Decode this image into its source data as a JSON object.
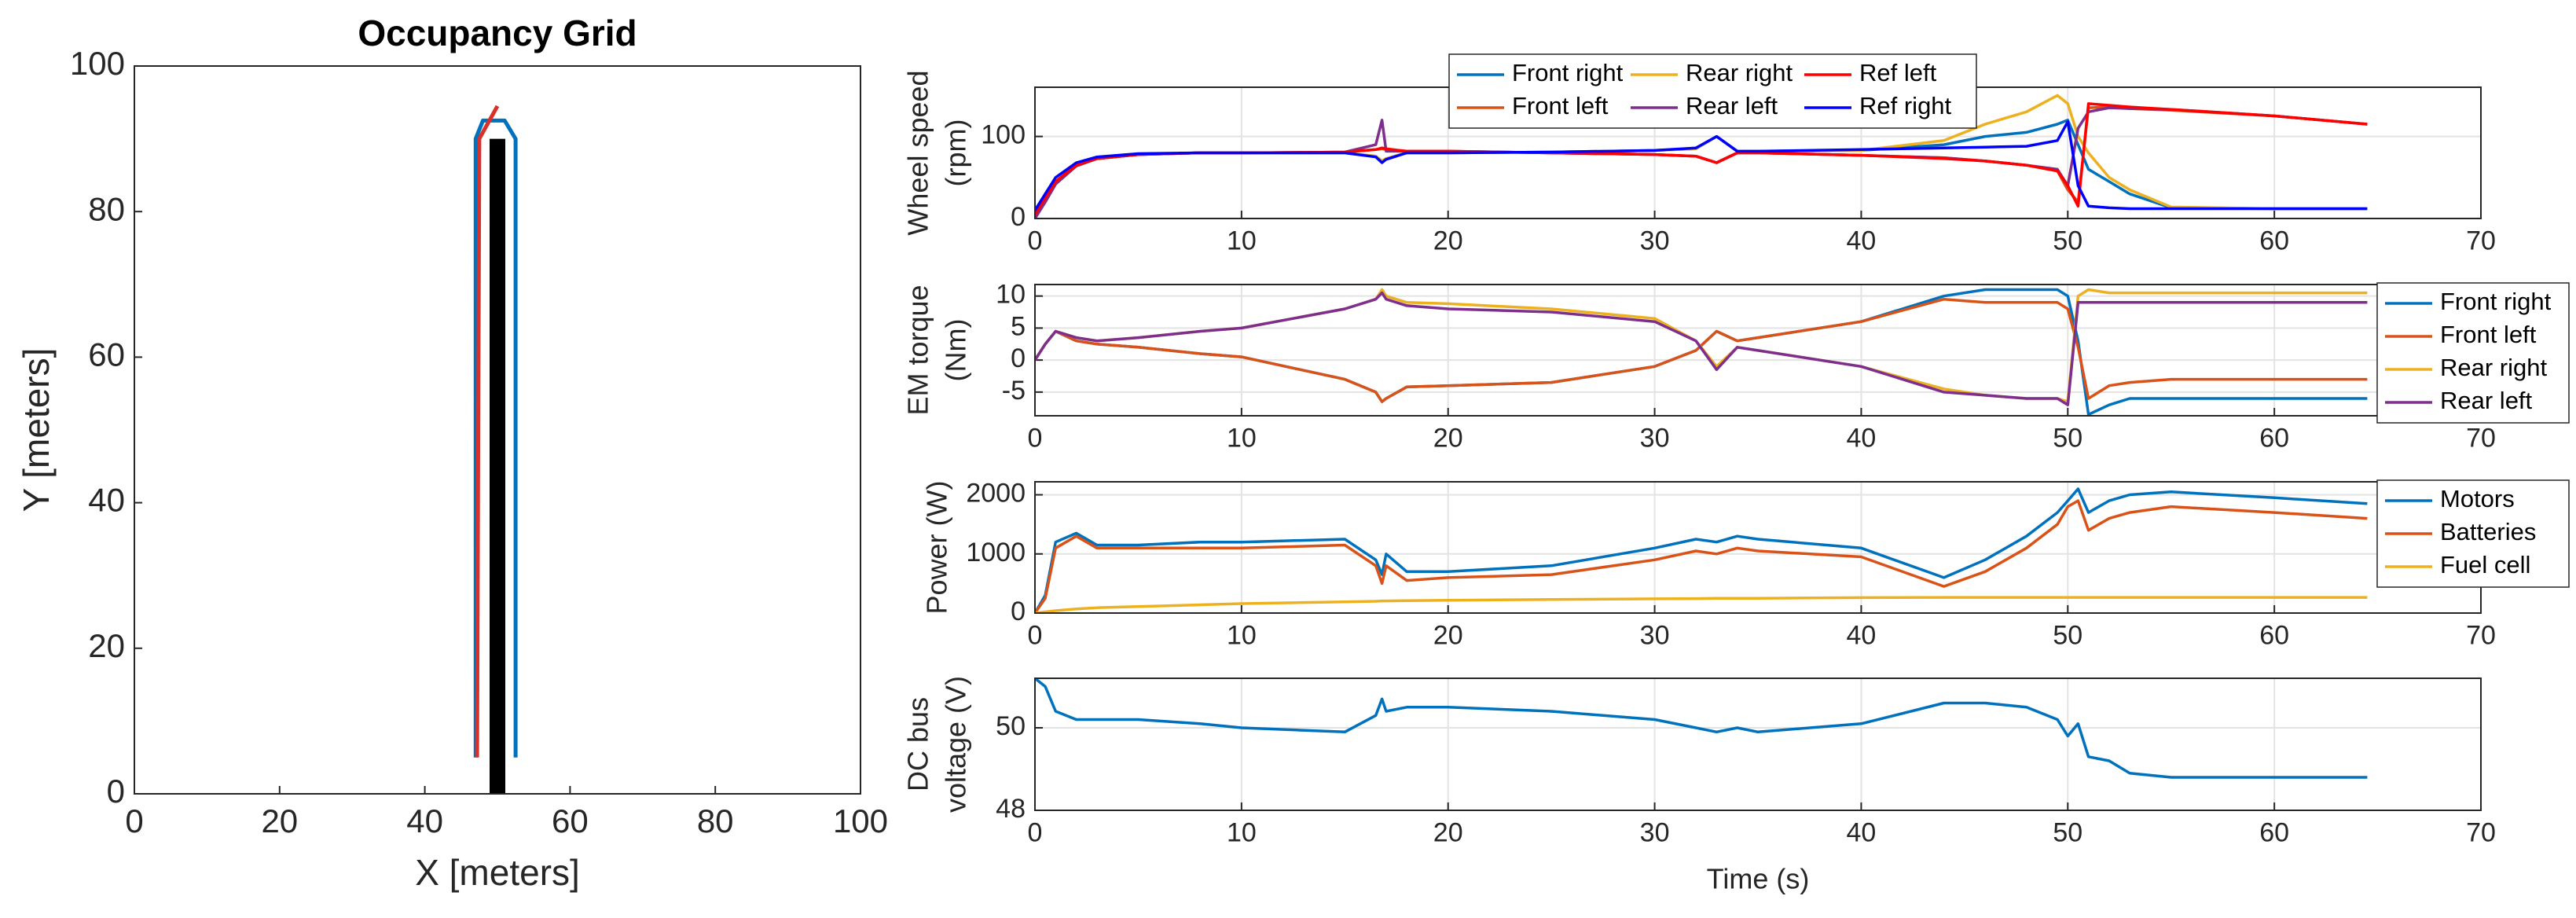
{
  "chart_data": [
    {
      "type": "line",
      "title": "Occupancy Grid",
      "xlabel": "X [meters]",
      "ylabel": "Y [meters]",
      "xlim": [
        0,
        100
      ],
      "ylim": [
        0,
        100
      ],
      "xticks": [
        0,
        20,
        40,
        60,
        80,
        100
      ],
      "yticks": [
        0,
        20,
        40,
        60,
        80,
        100
      ],
      "grid": false,
      "series": [
        {
          "color": "#0072BD",
          "x": [
            52.5,
            52.5,
            51,
            48,
            47,
            47
          ],
          "values": [
            5,
            90,
            92.5,
            92.5,
            90,
            5
          ]
        },
        {
          "color": "#D9302B",
          "x": [
            47.2,
            47.5,
            50
          ],
          "values": [
            5,
            90,
            94.5
          ]
        },
        {
          "color": "#000000",
          "x": [
            50,
            50
          ],
          "values": [
            0,
            90
          ]
        }
      ]
    },
    {
      "type": "line",
      "ylabel": [
        "Wheel speed",
        "(rpm)"
      ],
      "xlim": [
        0,
        70
      ],
      "ylim": [
        0,
        160
      ],
      "xticks": [
        0,
        10,
        20,
        30,
        40,
        50,
        60,
        70
      ],
      "yticks": [
        0,
        100
      ],
      "grid": true,
      "legend": "north",
      "x": [
        0,
        0.5,
        1,
        2,
        3,
        5,
        8,
        10,
        15,
        16.5,
        16.8,
        17,
        18,
        20,
        25,
        30,
        32,
        33,
        34,
        35,
        40,
        44,
        46,
        48,
        49.5,
        50,
        50.5,
        51,
        52,
        53,
        55,
        60,
        64.5
      ],
      "series": [
        {
          "name": "Front right",
          "color": "#0072BD",
          "values": [
            5,
            22,
            45,
            65,
            73,
            78,
            80,
            80,
            80,
            76,
            70,
            73,
            80,
            80,
            81,
            83,
            85,
            100,
            82,
            82,
            83,
            90,
            100,
            105,
            115,
            120,
            90,
            60,
            45,
            30,
            13,
            12,
            12
          ]
        },
        {
          "name": "Front left",
          "color": "#D95319",
          "values": [
            5,
            22,
            45,
            65,
            73,
            78,
            80,
            80,
            81,
            84,
            85,
            84,
            82,
            82,
            80,
            78,
            76,
            68,
            80,
            80,
            77,
            74,
            70,
            65,
            58,
            35,
            20,
            135,
            136,
            134,
            132,
            125,
            115
          ]
        },
        {
          "name": "Rear right",
          "color": "#EDB120",
          "values": [
            5,
            20,
            42,
            64,
            73,
            78,
            80,
            80,
            80,
            76,
            70,
            73,
            80,
            80,
            81,
            83,
            85,
            100,
            82,
            82,
            83,
            95,
            115,
            130,
            150,
            140,
            100,
            80,
            50,
            35,
            14,
            12,
            12
          ]
        },
        {
          "name": "Rear left",
          "color": "#7E2F8E",
          "values": [
            0,
            20,
            42,
            64,
            73,
            78,
            80,
            80,
            81,
            90,
            120,
            82,
            82,
            82,
            80,
            78,
            76,
            68,
            80,
            80,
            77,
            74,
            70,
            65,
            60,
            40,
            110,
            130,
            135,
            134,
            133,
            125,
            115
          ]
        },
        {
          "name": "Ref left",
          "color": "#FF0000",
          "values": [
            5,
            25,
            45,
            65,
            73,
            78,
            80,
            80,
            81,
            84,
            86,
            85,
            82,
            82,
            80,
            78,
            76,
            68,
            80,
            80,
            77,
            73,
            70,
            65,
            58,
            40,
            15,
            140,
            138,
            136,
            133,
            125,
            115
          ]
        },
        {
          "name": "Ref right",
          "color": "#0000FF",
          "values": [
            10,
            30,
            50,
            68,
            75,
            79,
            80,
            80,
            80,
            75,
            68,
            72,
            80,
            80,
            81,
            83,
            86,
            100,
            82,
            82,
            84,
            86,
            87,
            88,
            95,
            118,
            40,
            15,
            13,
            12,
            12,
            12,
            12
          ]
        }
      ]
    },
    {
      "type": "line",
      "ylabel": [
        "EM torque",
        "(Nm)"
      ],
      "xlim": [
        0,
        70
      ],
      "ylim": [
        -8.7,
        11.8
      ],
      "xticks": [
        0,
        10,
        20,
        30,
        40,
        50,
        60,
        70
      ],
      "yticks": [
        -5,
        0,
        5,
        10
      ],
      "grid": true,
      "legend": "eastoutside",
      "x": [
        0,
        0.5,
        1,
        2,
        3,
        5,
        8,
        10,
        15,
        16.5,
        16.8,
        17,
        18,
        20,
        25,
        30,
        32,
        33,
        34,
        35,
        40,
        44,
        46,
        48,
        49.5,
        50,
        50.5,
        51,
        52,
        53,
        55,
        60,
        64.5
      ],
      "series": [
        {
          "name": "Front right",
          "color": "#0072BD",
          "values": [
            0,
            2.5,
            4.5,
            3,
            2.5,
            2,
            1,
            0.5,
            -3,
            -5,
            -6.5,
            -6,
            -4.2,
            -4,
            -3.5,
            -1,
            1.5,
            4.5,
            3,
            3.5,
            6,
            10,
            11,
            11,
            11,
            10,
            3,
            -8.5,
            -7,
            -6,
            -6,
            -6,
            -6
          ]
        },
        {
          "name": "Front left",
          "color": "#D95319",
          "values": [
            0,
            2.5,
            4.5,
            3,
            2.5,
            2,
            1,
            0.5,
            -3,
            -5,
            -6.5,
            -6,
            -4.2,
            -4,
            -3.5,
            -1,
            1.5,
            4.5,
            3,
            3.5,
            6,
            9.5,
            9,
            9,
            9,
            8,
            2,
            -6,
            -4,
            -3.5,
            -3,
            -3,
            -3
          ]
        },
        {
          "name": "Rear right",
          "color": "#EDB120",
          "values": [
            0,
            2.5,
            4.5,
            3.5,
            3,
            3.5,
            4.5,
            5,
            8,
            9.5,
            11,
            10,
            9,
            8.8,
            8,
            6.5,
            3,
            -1,
            2,
            1.5,
            -1,
            -4.5,
            -5.5,
            -6,
            -6,
            -6.5,
            10,
            11,
            10.5,
            10.5,
            10.5,
            10.5,
            10.5
          ]
        },
        {
          "name": "Rear left",
          "color": "#7E2F8E",
          "values": [
            0,
            2.5,
            4.5,
            3.5,
            3,
            3.5,
            4.5,
            5,
            8,
            9.5,
            10.5,
            9.5,
            8.5,
            8,
            7.5,
            6,
            3,
            -1.5,
            2,
            1.5,
            -1,
            -5,
            -5.5,
            -6,
            -6,
            -7,
            9,
            9,
            9,
            9,
            9,
            9,
            9
          ]
        }
      ]
    },
    {
      "type": "line",
      "ylabel": "Power (W)",
      "xlim": [
        0,
        70
      ],
      "ylim": [
        0,
        2220
      ],
      "xticks": [
        0,
        10,
        20,
        30,
        40,
        50,
        60,
        70
      ],
      "yticks": [
        0,
        1000,
        2000
      ],
      "grid": true,
      "legend": "eastoutside",
      "x": [
        0,
        0.5,
        1,
        2,
        3,
        5,
        8,
        10,
        15,
        16.5,
        16.8,
        17,
        18,
        20,
        25,
        30,
        32,
        33,
        34,
        35,
        40,
        44,
        46,
        48,
        49.5,
        50,
        50.5,
        51,
        52,
        53,
        55,
        60,
        64.5
      ],
      "series": [
        {
          "name": "Motors",
          "color": "#0072BD",
          "values": [
            0,
            300,
            1200,
            1350,
            1150,
            1150,
            1200,
            1200,
            1250,
            900,
            650,
            1000,
            700,
            700,
            800,
            1100,
            1250,
            1200,
            1300,
            1250,
            1100,
            600,
            900,
            1300,
            1700,
            1900,
            2100,
            1700,
            1900,
            2000,
            2050,
            1950,
            1850
          ]
        },
        {
          "name": "Batteries",
          "color": "#D95319",
          "values": [
            0,
            250,
            1100,
            1300,
            1100,
            1100,
            1100,
            1100,
            1150,
            800,
            500,
            800,
            550,
            600,
            650,
            900,
            1050,
            1000,
            1100,
            1050,
            950,
            450,
            700,
            1100,
            1500,
            1800,
            1900,
            1400,
            1600,
            1700,
            1800,
            1700,
            1600
          ]
        },
        {
          "name": "Fuel cell",
          "color": "#EDB120",
          "values": [
            0,
            20,
            40,
            70,
            90,
            110,
            140,
            160,
            190,
            200,
            205,
            205,
            210,
            215,
            230,
            240,
            245,
            250,
            250,
            250,
            260,
            265,
            265,
            265,
            265,
            265,
            265,
            265,
            265,
            265,
            265,
            265,
            265
          ]
        }
      ]
    },
    {
      "type": "line",
      "ylabel": [
        "DC bus",
        "voltage (V)"
      ],
      "xlabel": "Time (s)",
      "xlim": [
        0,
        70
      ],
      "ylim": [
        48,
        51.2
      ],
      "xticks": [
        0,
        10,
        20,
        30,
        40,
        50,
        60,
        70
      ],
      "yticks": [
        48,
        50
      ],
      "grid": true,
      "x": [
        0,
        0.5,
        1,
        2,
        3,
        5,
        8,
        10,
        15,
        16.5,
        16.8,
        17,
        18,
        20,
        25,
        30,
        32,
        33,
        34,
        35,
        40,
        44,
        46,
        48,
        49.5,
        50,
        50.5,
        51,
        52,
        53,
        55,
        60,
        64.5
      ],
      "series": [
        {
          "color": "#0072BD",
          "values": [
            51.2,
            51,
            50.4,
            50.2,
            50.2,
            50.2,
            50.1,
            50,
            49.9,
            50.3,
            50.7,
            50.4,
            50.5,
            50.5,
            50.4,
            50.2,
            50.0,
            49.9,
            50.0,
            49.9,
            50.1,
            50.6,
            50.6,
            50.5,
            50.2,
            49.8,
            50.1,
            49.3,
            49.2,
            48.9,
            48.8,
            48.8,
            48.8
          ]
        }
      ]
    }
  ]
}
